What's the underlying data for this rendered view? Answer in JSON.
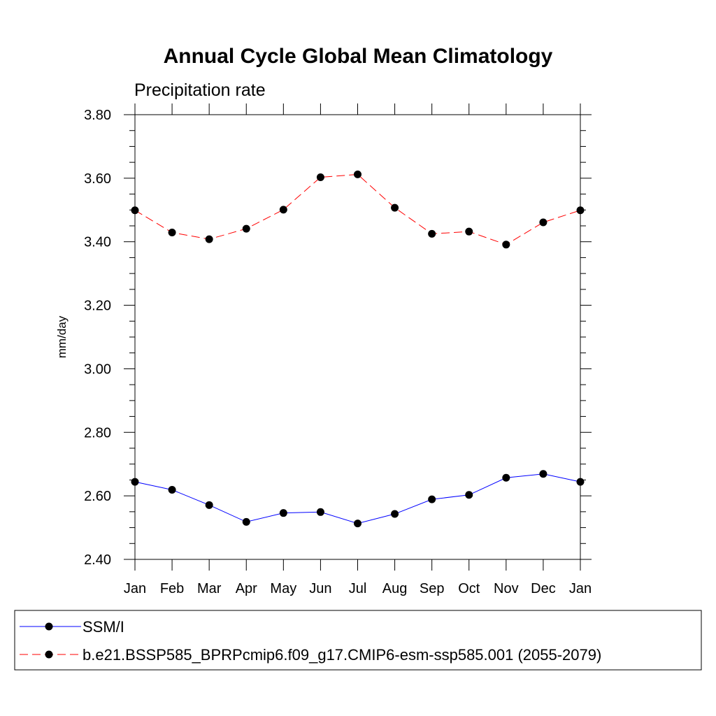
{
  "chart_data": {
    "type": "line",
    "title": "Annual Cycle Global Mean Climatology",
    "subtitle": "Precipitation rate",
    "ylabel": "mm/day",
    "xlabel": "",
    "categories": [
      "Jan",
      "Feb",
      "Mar",
      "Apr",
      "May",
      "Jun",
      "Jul",
      "Aug",
      "Sep",
      "Oct",
      "Nov",
      "Dec",
      "Jan"
    ],
    "ylim": [
      2.4,
      3.8
    ],
    "yticks": [
      "2.40",
      "2.60",
      "2.80",
      "3.00",
      "3.20",
      "3.40",
      "3.60",
      "3.80"
    ],
    "series": [
      {
        "name": "SSM/I",
        "color": "#0000ff",
        "line_style": "solid",
        "marker": "filled-circle",
        "values": [
          2.644,
          2.619,
          2.571,
          2.518,
          2.546,
          2.549,
          2.513,
          2.543,
          2.589,
          2.603,
          2.657,
          2.669,
          2.644
        ]
      },
      {
        "name": "b.e21.BSSP585_BPRPcmip6.f09_g17.CMIP6-esm-ssp585.001 (2055-2079)",
        "color": "#ff0000",
        "line_style": "dashed",
        "marker": "filled-circle",
        "values": [
          3.499,
          3.429,
          3.408,
          3.441,
          3.501,
          3.603,
          3.612,
          3.507,
          3.425,
          3.432,
          3.391,
          3.461,
          3.499
        ]
      }
    ],
    "legend_position": "bottom",
    "grid": false
  }
}
